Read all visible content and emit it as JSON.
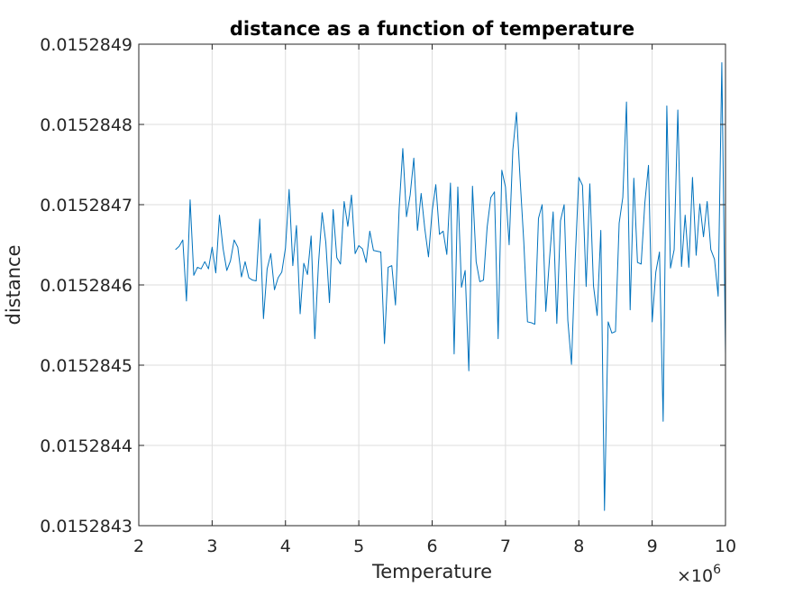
{
  "chart_data": {
    "type": "line",
    "title": "distance as a function of temperature",
    "xlabel": "Temperature",
    "ylabel": "distance",
    "x_exponent_base": "×10",
    "x_exponent_power": "6",
    "xlim": [
      2,
      10
    ],
    "ylim": [
      0.0152843,
      0.0152849
    ],
    "xticks": [
      2,
      3,
      4,
      5,
      6,
      7,
      8,
      9,
      10
    ],
    "xtick_labels": [
      "2",
      "3",
      "4",
      "5",
      "6",
      "7",
      "8",
      "9",
      "10"
    ],
    "yticks": [
      0.0152843,
      0.0152844,
      0.0152845,
      0.0152846,
      0.0152847,
      0.0152848,
      0.0152849
    ],
    "ytick_labels": [
      "0.0152843",
      "0.0152844",
      "0.0152845",
      "0.0152846",
      "0.0152847",
      "0.0152848",
      "0.0152849"
    ],
    "grid": true,
    "color": "#0072bd",
    "series": [
      {
        "x_start": 2500000,
        "x_step": 50000,
        "y_base": 0.0152846,
        "y_unit": 1e-07,
        "y_offsets": [
          0.44,
          0.48,
          0.56,
          -0.2,
          1.06,
          0.12,
          0.22,
          0.2,
          0.29,
          0.2,
          0.47,
          0.15,
          0.87,
          0.45,
          0.18,
          0.3,
          0.56,
          0.47,
          0.1,
          0.29,
          0.09,
          0.06,
          0.05,
          0.82,
          -0.42,
          0.2,
          0.39,
          -0.06,
          0.09,
          0.16,
          0.46,
          1.19,
          0.24,
          0.74,
          -0.36,
          0.27,
          0.13,
          0.61,
          -0.67,
          0.26,
          0.9,
          0.53,
          -0.22,
          0.94,
          0.34,
          0.26,
          1.04,
          0.73,
          1.12,
          0.39,
          0.49,
          0.45,
          0.28,
          0.67,
          0.43,
          0.42,
          0.41,
          -0.73,
          0.22,
          0.24,
          -0.25,
          0.95,
          1.7,
          0.85,
          1.12,
          1.58,
          0.68,
          1.14,
          0.7,
          0.35,
          0.92,
          1.25,
          0.63,
          0.67,
          0.38,
          1.27,
          -0.86,
          1.22,
          -0.03,
          0.18,
          -1.07,
          1.23,
          0.29,
          0.04,
          0.06,
          0.72,
          1.09,
          1.16,
          -0.67,
          1.43,
          1.22,
          0.5,
          1.68,
          2.15,
          1.31,
          0.53,
          -0.46,
          -0.47,
          -0.49,
          0.83,
          1.0,
          -0.33,
          0.32,
          0.91,
          -0.48,
          0.8,
          1.0,
          -0.44,
          -0.99,
          0.3,
          1.34,
          1.24,
          -0.02,
          1.26,
          -0.01,
          -0.38,
          0.68,
          -2.81,
          -0.46,
          -0.6,
          -0.58,
          0.77,
          1.09,
          2.28,
          -0.31,
          1.33,
          0.28,
          0.26,
          1.02,
          1.49,
          -0.46,
          0.16,
          0.41,
          -1.7,
          2.23,
          0.21,
          0.44,
          2.18,
          0.23,
          0.87,
          0.22,
          1.34,
          0.37,
          1.01,
          0.6,
          1.04,
          0.44,
          0.32,
          -0.14,
          2.77,
          -0.86
        ]
      }
    ]
  }
}
